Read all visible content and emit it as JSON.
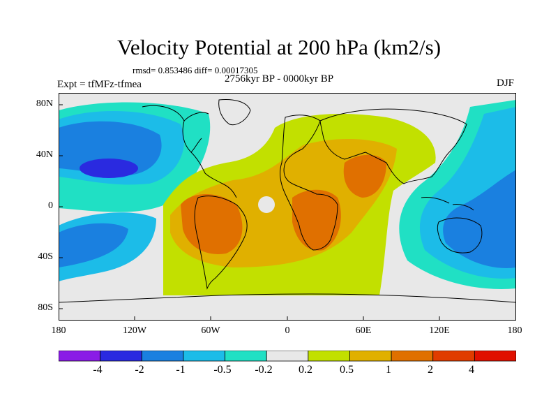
{
  "header": {
    "title": "Velocity Potential at 200 hPa (km2/s)",
    "stats": "rmsd= 0.853486 diff= 0.00017305",
    "experiment": "Expt = tfMFz-tfmea",
    "period": "2756kyr BP - 0000kyr BP",
    "season": "DJF"
  },
  "axes": {
    "lat_labels": [
      "80N",
      "40N",
      "0",
      "40S",
      "80S"
    ],
    "lon_labels": [
      "180",
      "120W",
      "60W",
      "0",
      "60E",
      "120E",
      "180"
    ]
  },
  "colorbar": {
    "labels": [
      "-4",
      "-2",
      "-1",
      "-0.5",
      "-0.2",
      "0.2",
      "0.5",
      "1",
      "2",
      "4"
    ],
    "colors": [
      "#8a1ce6",
      "#2a2ae0",
      "#1a80e0",
      "#1cbce8",
      "#20e0c4",
      "#e8e8e8",
      "#c2e000",
      "#e0b000",
      "#e07000",
      "#e03c00",
      "#e01000"
    ]
  },
  "field_colors": {
    "neutral": "#e8e8e8",
    "neg_02": "#20e0c4",
    "neg_05": "#1cbce8",
    "neg_1": "#1a80e0",
    "neg_2": "#2a2ae0",
    "pos_02": "#c2e000",
    "pos_05": "#e0b000",
    "pos_1": "#e07000"
  }
}
